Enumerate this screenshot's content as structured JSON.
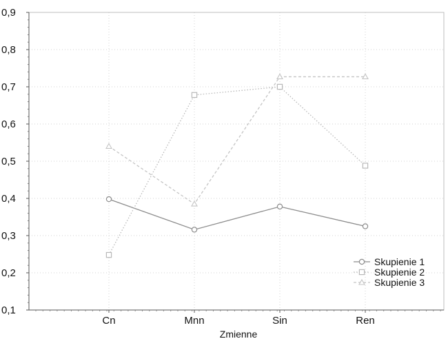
{
  "chart_data": {
    "type": "line",
    "categories": [
      "Cn",
      "Mnn",
      "Sin",
      "Ren"
    ],
    "xlabel": "Zmienne",
    "ylabel": "",
    "title": "",
    "ylim": [
      0.1,
      0.9
    ],
    "yticks": [
      "0,1",
      "0,2",
      "0,3",
      "0,4",
      "0,5",
      "0,6",
      "0,7",
      "0,8",
      "0,9"
    ],
    "grid": true,
    "legend_position": "bottom-right",
    "series": [
      {
        "name": "Skupienie 1",
        "values": [
          0.398,
          0.316,
          0.378,
          0.325
        ],
        "marker": "circle",
        "dash": "solid",
        "color": "#8c8c8c"
      },
      {
        "name": "Skupienie 2",
        "values": [
          0.248,
          0.678,
          0.7,
          0.488
        ],
        "marker": "square",
        "dash": "dotted",
        "color": "#b8b8b8"
      },
      {
        "name": "Skupienie 3",
        "values": [
          0.54,
          0.385,
          0.727,
          0.727
        ],
        "marker": "triangle",
        "dash": "dashed",
        "color": "#c4c4c4"
      }
    ]
  }
}
